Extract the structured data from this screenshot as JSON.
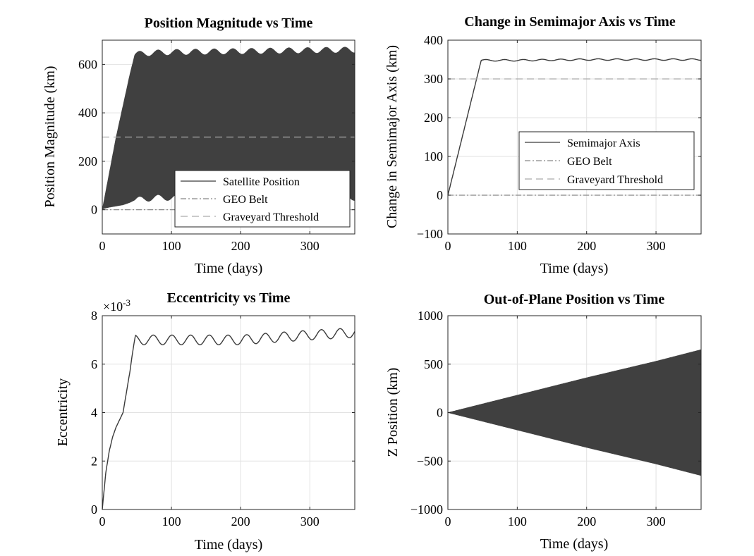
{
  "figure": {
    "colors": {
      "fill": "#404040",
      "line": "#3a3a3a",
      "grid": "#e2e2e2",
      "geo": "#888888",
      "graveyard": "#aaaaaa",
      "box": "#262626"
    }
  },
  "chart_data": [
    {
      "type": "area",
      "title": "Position Magnitude vs Time",
      "xlabel": "Time (days)",
      "ylabel": "Position Magnitude (km)",
      "xlim": [
        0,
        365
      ],
      "ylim": [
        -100,
        700
      ],
      "xticks": [
        0,
        100,
        200,
        300
      ],
      "yticks": [
        0,
        200,
        400,
        600
      ],
      "grid": true,
      "legend_location": "bottom-right",
      "legend": [
        "Satellite Position",
        "GEO Belt",
        "Graveyard Threshold"
      ],
      "series": [
        {
          "name": "Satellite Position",
          "style": "band",
          "x": [
            0,
            2,
            10,
            20,
            30,
            40,
            47,
            60,
            80,
            100,
            150,
            200,
            250,
            300,
            365
          ],
          "upper": [
            0,
            30,
            150,
            300,
            430,
            560,
            640,
            645,
            648,
            650,
            652,
            654,
            656,
            658,
            660
          ],
          "lower": [
            0,
            5,
            10,
            15,
            20,
            30,
            40,
            45,
            50,
            50,
            50,
            50,
            50,
            50,
            50
          ],
          "oscillation_amplitude": 12,
          "oscillation_period_days": 27
        },
        {
          "name": "GEO Belt",
          "style": "dashdot",
          "value": 0
        },
        {
          "name": "Graveyard Threshold",
          "style": "dashed",
          "value": 300
        }
      ]
    },
    {
      "type": "line",
      "title": "Change in Semimajor Axis vs Time",
      "xlabel": "Time (days)",
      "ylabel": "Change in Semimajor Axis (km)",
      "xlim": [
        0,
        365
      ],
      "ylim": [
        -100,
        400
      ],
      "xticks": [
        0,
        100,
        200,
        300
      ],
      "yticks": [
        -100,
        0,
        100,
        200,
        300,
        400
      ],
      "grid": true,
      "legend_location": "center-right",
      "legend": [
        "Semimajor Axis",
        "GEO Belt",
        "Graveyard Threshold"
      ],
      "series": [
        {
          "name": "Semimajor Axis",
          "style": "solid",
          "x": [
            0,
            48,
            100,
            200,
            300,
            365
          ],
          "y": [
            0,
            348,
            348,
            350,
            350,
            350
          ],
          "oscillation_amplitude": 2,
          "oscillation_period_days": 27
        },
        {
          "name": "GEO Belt",
          "style": "dashdot",
          "value": 0
        },
        {
          "name": "Graveyard Threshold",
          "style": "dashed",
          "value": 300
        }
      ]
    },
    {
      "type": "line",
      "title": "Eccentricity vs Time",
      "xlabel": "Time (days)",
      "ylabel": "Eccentricity",
      "exponent_label": "×10",
      "exponent_power": "-3",
      "xlim": [
        0,
        365
      ],
      "ylim": [
        0,
        8
      ],
      "xticks": [
        0,
        100,
        200,
        300
      ],
      "yticks": [
        0,
        2,
        4,
        6,
        8
      ],
      "grid": true,
      "series": [
        {
          "style": "solid",
          "x": [
            0,
            5,
            10,
            15,
            20,
            30,
            40,
            48,
            75,
            100,
            200,
            300,
            365
          ],
          "y": [
            0,
            1.5,
            2.4,
            3.0,
            3.4,
            4.0,
            5.7,
            7.0,
            7.0,
            7.0,
            7.0,
            7.2,
            7.3
          ],
          "oscillation_amplitude": 0.2,
          "oscillation_period_days": 27
        }
      ]
    },
    {
      "type": "area",
      "title": "Out-of-Plane Position vs Time",
      "xlabel": "Time (days)",
      "ylabel": "Z Position (km)",
      "xlim": [
        0,
        365
      ],
      "ylim": [
        -1000,
        1000
      ],
      "xticks": [
        0,
        100,
        200,
        300
      ],
      "yticks": [
        -1000,
        -500,
        0,
        500,
        1000
      ],
      "grid": true,
      "series": [
        {
          "style": "band",
          "x": [
            0,
            100,
            200,
            300,
            365
          ],
          "upper": [
            0,
            180,
            360,
            530,
            650
          ],
          "lower": [
            0,
            -180,
            -360,
            -530,
            -650
          ]
        }
      ]
    }
  ]
}
